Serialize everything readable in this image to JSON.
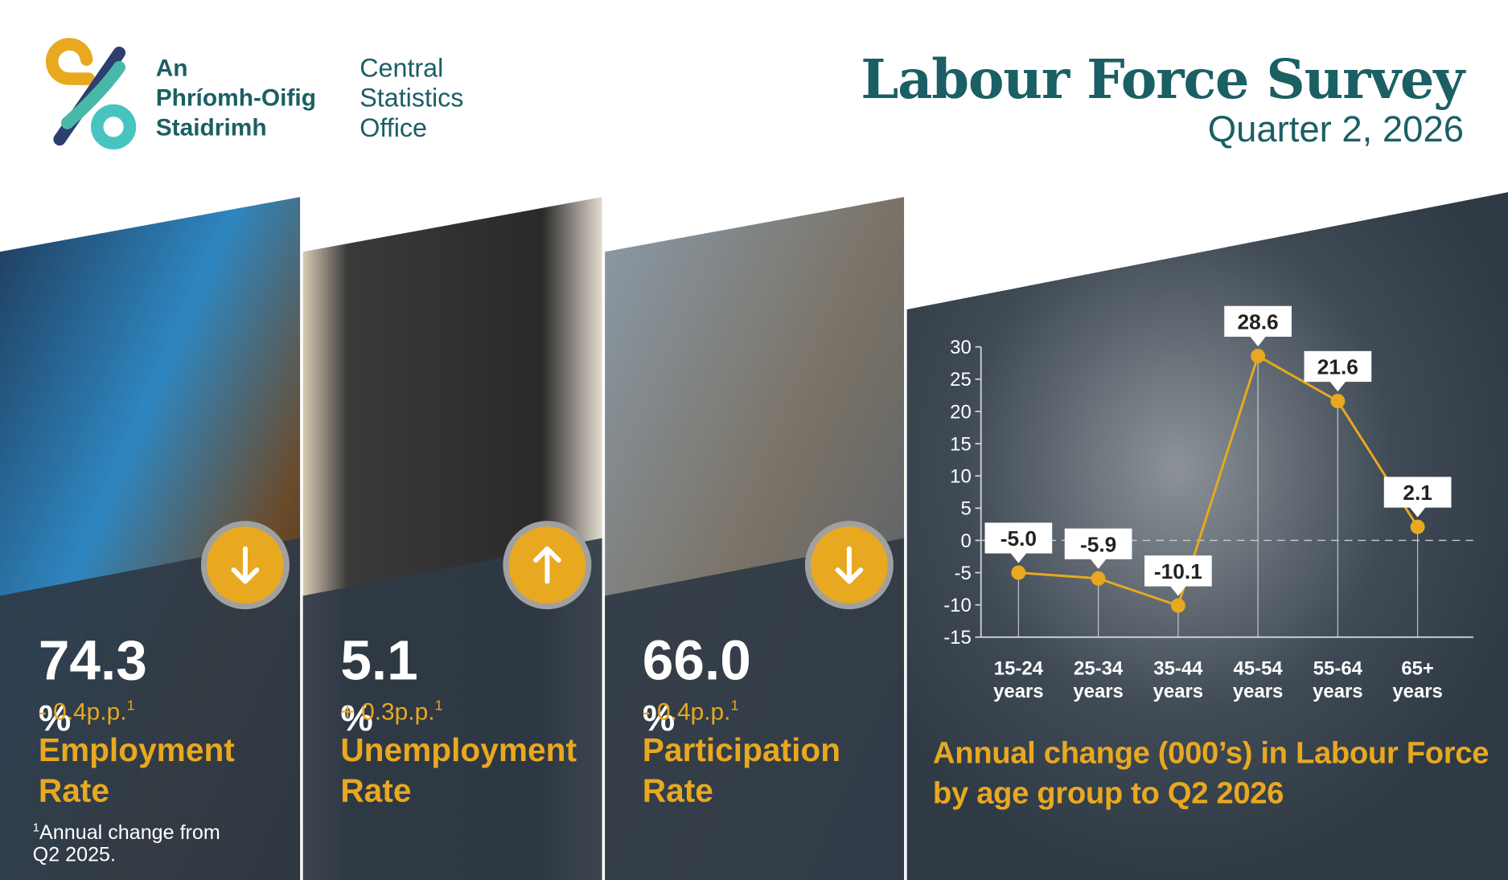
{
  "header": {
    "org_irish": [
      "An",
      "Phríomh-Oifig",
      "Staidrimh"
    ],
    "org_english": [
      "Central",
      "Statistics",
      "Office"
    ],
    "title": "Labour Force Survey",
    "subtitle": "Quarter 2, 2026"
  },
  "kpis": [
    {
      "value": "74.3",
      "unit": "%",
      "change": "- 0.4p.p.",
      "note_mark": "1",
      "label": "Employment Rate",
      "direction": "down"
    },
    {
      "value": "5.1",
      "unit": "%",
      "change": "+ 0.3p.p.",
      "note_mark": "1",
      "label": "Unemployment Rate",
      "direction": "up"
    },
    {
      "value": "66.0",
      "unit": "%",
      "change": "- 0.4p.p.",
      "note_mark": "1",
      "label": "Participation Rate",
      "direction": "down"
    }
  ],
  "footnote": {
    "mark": "1",
    "text": "Annual change from Q2 2025."
  },
  "chart_data": {
    "type": "line",
    "title": "Annual change (000’s) in Labour Force by age group to Q2 2026",
    "categories": [
      "15-24 years",
      "25-34 years",
      "35-44 years",
      "45-54 years",
      "55-64 years",
      "65+ years"
    ],
    "values": [
      -5.0,
      -5.9,
      -10.1,
      28.6,
      21.6,
      2.1
    ],
    "value_labels": [
      "-5.0",
      "-5.9",
      "-10.1",
      "28.6",
      "21.6",
      "2.1"
    ],
    "color": "#e8a820",
    "ylim": [
      -15,
      30
    ],
    "yticks": [
      -15,
      -10,
      -5,
      0,
      5,
      10,
      15,
      20,
      25,
      30
    ],
    "zero_line": true
  }
}
